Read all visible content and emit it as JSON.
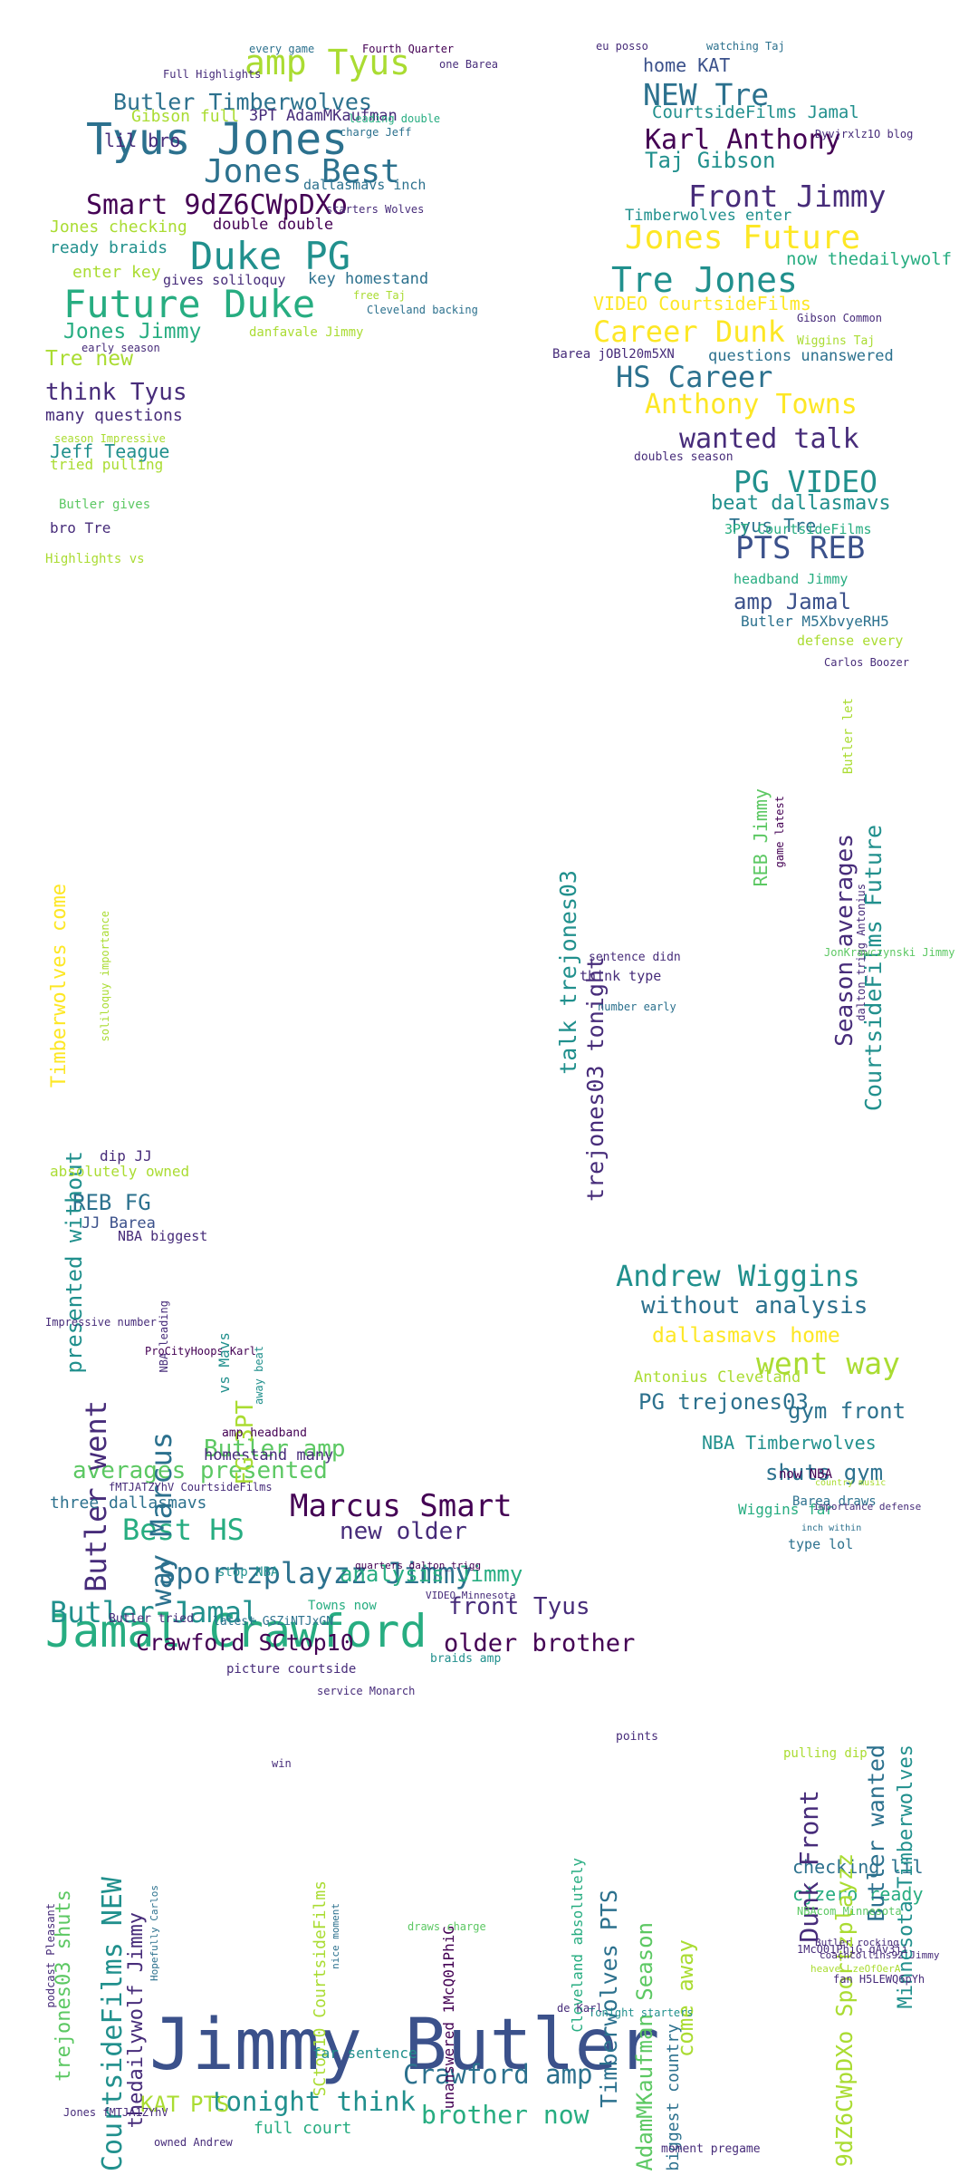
{
  "colors": {
    "background": "#ffffff",
    "palette": [
      "#440154",
      "#472c7a",
      "#3b518b",
      "#2c718e",
      "#21908d",
      "#27ad81",
      "#5cc863",
      "#aadc32",
      "#fde725"
    ]
  },
  "words": [
    {
      "t": "Jimmy Butler",
      "c": "#3b518b"
    },
    {
      "t": "Jamal Crawford",
      "c": "#27ad81"
    },
    {
      "t": "Tyus Jones",
      "c": "#2c718e"
    },
    {
      "t": "Duke PG",
      "c": "#21908d"
    },
    {
      "t": "Future Duke",
      "c": "#27ad81"
    },
    {
      "t": "amp Tyus",
      "c": "#aadc32"
    },
    {
      "t": "Jones Best",
      "c": "#2c718e"
    },
    {
      "t": "Smart 9dZ6CWpDXo",
      "c": "#440154"
    },
    {
      "t": "Butler Timberwolves",
      "c": "#2c718e"
    },
    {
      "t": "NEW Tre",
      "c": "#2c718e"
    },
    {
      "t": "Karl Anthony",
      "c": "#440154"
    },
    {
      "t": "Front Jimmy",
      "c": "#472c7a"
    },
    {
      "t": "Taj Gibson",
      "c": "#21908d"
    },
    {
      "t": "Jones Future",
      "c": "#fde725"
    },
    {
      "t": "Tre Jones",
      "c": "#21908d"
    },
    {
      "t": "Career Dunk",
      "c": "#fde725"
    },
    {
      "t": "HS Career",
      "c": "#2c718e"
    },
    {
      "t": "Anthony Towns",
      "c": "#fde725"
    },
    {
      "t": "wanted talk",
      "c": "#472c7a"
    },
    {
      "t": "PG VIDEO",
      "c": "#21908d"
    },
    {
      "t": "PTS REB",
      "c": "#3b518b"
    },
    {
      "t": "Andrew Wiggins",
      "c": "#21908d"
    },
    {
      "t": "went way",
      "c": "#aadc32"
    },
    {
      "t": "Marcus Smart",
      "c": "#440154"
    },
    {
      "t": "Sportzplayzz Jimmy",
      "c": "#2c718e"
    },
    {
      "t": "Butler Jamal",
      "c": "#21908d"
    },
    {
      "t": "Crawford SCtop10",
      "c": "#440154"
    },
    {
      "t": "older brother",
      "c": "#440154"
    },
    {
      "t": "Crawford amp",
      "c": "#2c718e"
    },
    {
      "t": "tonight think",
      "c": "#21908d"
    },
    {
      "t": "brother now",
      "c": "#27ad81"
    },
    {
      "t": "Best HS",
      "c": "#27ad81"
    },
    {
      "t": "averages presented",
      "c": "#5cc863"
    },
    {
      "t": "Butler amp",
      "c": "#5cc863"
    },
    {
      "t": "new older",
      "c": "#472c7a"
    },
    {
      "t": "front Tyus",
      "c": "#472c7a"
    },
    {
      "t": "analysis Jimmy",
      "c": "#27ad81"
    },
    {
      "t": "Jones Jimmy",
      "c": "#27ad81"
    },
    {
      "t": "think Tyus",
      "c": "#472c7a"
    },
    {
      "t": "Tre new",
      "c": "#aadc32"
    },
    {
      "t": "Jeff Teague",
      "c": "#21908d"
    },
    {
      "t": "many questions",
      "c": "#472c7a"
    },
    {
      "t": "Gibson full",
      "c": "#aadc32"
    },
    {
      "t": "3PT AdamMKaufman",
      "c": "#472c7a"
    },
    {
      "t": "lil bro",
      "c": "#472c7a"
    },
    {
      "t": "Jones checking",
      "c": "#aadc32"
    },
    {
      "t": "ready braids",
      "c": "#21908d"
    },
    {
      "t": "double double",
      "c": "#440154"
    },
    {
      "t": "enter key",
      "c": "#aadc32"
    },
    {
      "t": "key homestand",
      "c": "#2c718e"
    },
    {
      "t": "dallasmavs inch",
      "c": "#2c718e"
    },
    {
      "t": "gives soliloquy",
      "c": "#472c7a"
    },
    {
      "t": "danfavale Jimmy",
      "c": "#aadc32"
    },
    {
      "t": "home KAT",
      "c": "#3b518b"
    },
    {
      "t": "CourtsideFilms Jamal",
      "c": "#21908d"
    },
    {
      "t": "Timberwolves enter",
      "c": "#21908d"
    },
    {
      "t": "now thedailywolf",
      "c": "#27ad81"
    },
    {
      "t": "VIDEO CourtsideFilms",
      "c": "#fde725"
    },
    {
      "t": "questions unanswered",
      "c": "#2c718e"
    },
    {
      "t": "beat dallasmavs",
      "c": "#21908d"
    },
    {
      "t": "Tyus Tre",
      "c": "#2c718e"
    },
    {
      "t": "amp Jamal",
      "c": "#3b518b"
    },
    {
      "t": "3PT CourtsideFilms",
      "c": "#27ad81"
    },
    {
      "t": "headband Jimmy",
      "c": "#27ad81"
    },
    {
      "t": "Butler M5XbvyeRH5",
      "c": "#2c718e"
    },
    {
      "t": "without analysis",
      "c": "#2c718e"
    },
    {
      "t": "dallasmavs home",
      "c": "#fde725"
    },
    {
      "t": "PG trejones03",
      "c": "#2c718e"
    },
    {
      "t": "Antonius Cleveland",
      "c": "#aadc32"
    },
    {
      "t": "gym front",
      "c": "#2c718e"
    },
    {
      "t": "shuts gym",
      "c": "#2c718e"
    },
    {
      "t": "NBA Timberwolves",
      "c": "#21908d"
    },
    {
      "t": "Wiggins far",
      "c": "#27ad81"
    },
    {
      "t": "type lol",
      "c": "#2c718e"
    },
    {
      "t": "checking lil",
      "c": "#2c718e"
    },
    {
      "t": "cjzero ready",
      "c": "#27ad81"
    },
    {
      "t": "REB FG",
      "c": "#2c718e"
    },
    {
      "t": "JJ Barea",
      "c": "#3b518b"
    },
    {
      "t": "homestand many",
      "c": "#472c7a"
    },
    {
      "t": "Timberwolves come",
      "c": "#fde725"
    },
    {
      "t": "presented without",
      "c": "#21908d"
    },
    {
      "t": "Butler went",
      "c": "#472c7a"
    },
    {
      "t": "way Marcus",
      "c": "#2c718e"
    },
    {
      "t": "FG 3PT",
      "c": "#aadc32"
    },
    {
      "t": "talk trejones03",
      "c": "#21908d"
    },
    {
      "t": "trejones03 tonight",
      "c": "#472c7a"
    },
    {
      "t": "Season averages",
      "c": "#472c7a"
    },
    {
      "t": "CourtsideFilms Future",
      "c": "#21908d"
    },
    {
      "t": "REB Jimmy",
      "c": "#5cc863"
    },
    {
      "t": "CourtsideFilms NEW",
      "c": "#21908d"
    },
    {
      "t": "trejones03 shuts",
      "c": "#5cc863"
    },
    {
      "t": "thedailywolf Jimmy",
      "c": "#472c7a"
    },
    {
      "t": "Timberwolves PTS",
      "c": "#2c718e"
    },
    {
      "t": "AdamMKaufman Season",
      "c": "#5cc863"
    },
    {
      "t": "come away",
      "c": "#aadc32"
    },
    {
      "t": "Dunk Front",
      "c": "#472c7a"
    },
    {
      "t": "9dZ6CWpDXo Sportzplayzz",
      "c": "#aadc32"
    },
    {
      "t": "Butler wanted",
      "c": "#2c718e"
    },
    {
      "t": "Minnesota Timberwolves",
      "c": "#21908d"
    },
    {
      "t": "SCtop10 CourtsideFilms",
      "c": "#aadc32"
    },
    {
      "t": "unanswered 1McQ01PhiG",
      "c": "#440154"
    },
    {
      "t": "Cleveland absolutely",
      "c": "#27ad81"
    },
    {
      "t": "KAT",
      "c": "#aadc32"
    },
    {
      "t": "PTS",
      "c": "#aadc32"
    },
    {
      "t": "full court",
      "c": "#27ad81"
    },
    {
      "t": "far sentence",
      "c": "#21908d"
    },
    {
      "t": "dip JJ",
      "c": "#472c7a"
    },
    {
      "t": "absolutely owned",
      "c": "#aadc32"
    },
    {
      "t": "tried pulling",
      "c": "#aadc32"
    },
    {
      "t": "Butler gives",
      "c": "#5cc863"
    },
    {
      "t": "bro Tre",
      "c": "#472c7a"
    },
    {
      "t": "Highlights vs",
      "c": "#aadc32"
    },
    {
      "t": "season Impressive",
      "c": "#aadc32"
    },
    {
      "t": "Barea jOBl20m5XN",
      "c": "#472c7a"
    },
    {
      "t": "doubles season",
      "c": "#472c7a"
    },
    {
      "t": "defense every",
      "c": "#aadc32"
    },
    {
      "t": "Carlos Boozer",
      "c": "#472c7a"
    },
    {
      "t": "number early",
      "c": "#2c718e"
    },
    {
      "t": "think type",
      "c": "#472c7a"
    },
    {
      "t": "sentence didn",
      "c": "#472c7a"
    },
    {
      "t": "Barea draws",
      "c": "#2c718e"
    },
    {
      "t": "now NBA",
      "c": "#440154"
    },
    {
      "t": "pulling dip",
      "c": "#aadc32"
    },
    {
      "t": "stop NBA",
      "c": "#21908d"
    },
    {
      "t": "Towns now",
      "c": "#27ad81"
    },
    {
      "t": "braids amp",
      "c": "#21908d"
    },
    {
      "t": "Butler tried",
      "c": "#472c7a"
    },
    {
      "t": "latest GSZiNTJxGN",
      "c": "#2c718e"
    },
    {
      "t": "three dallasmavs",
      "c": "#2c718e"
    },
    {
      "t": "fMTJATZYhV CourtsideFilms",
      "c": "#472c7a"
    },
    {
      "t": "amp headband",
      "c": "#440154"
    },
    {
      "t": "biggest country",
      "c": "#2c718e"
    },
    {
      "t": "owned Andrew",
      "c": "#472c7a"
    },
    {
      "t": "Jones fMTJA1ZYhV",
      "c": "#472c7a"
    },
    {
      "t": "moment pregame",
      "c": "#472c7a"
    },
    {
      "t": "Tonight starters",
      "c": "#21908d"
    },
    {
      "t": "NBAcom Minnesota",
      "c": "#5cc863"
    },
    {
      "t": "Butler rocking",
      "c": "#472c7a"
    },
    {
      "t": "coachcollins92 Jimmy",
      "c": "#472c7a"
    },
    {
      "t": "fan H5LEWQ6pYh",
      "c": "#472c7a"
    },
    {
      "t": "heave LzeOfOerA",
      "c": "#aadc32"
    },
    {
      "t": "eu posso",
      "c": "#472c7a"
    },
    {
      "t": "watching Taj",
      "c": "#2c718e"
    },
    {
      "t": "Dyvjrxlz1O blog",
      "c": "#472c7a"
    },
    {
      "t": "Gibson Common",
      "c": "#472c7a"
    },
    {
      "t": "Wiggins Taj",
      "c": "#aadc32"
    },
    {
      "t": "charge Jeff",
      "c": "#2c718e"
    },
    {
      "t": "leading double",
      "c": "#27ad81"
    },
    {
      "t": "Full Highlights",
      "c": "#472c7a"
    },
    {
      "t": "every game",
      "c": "#2c718e"
    },
    {
      "t": "Fourth Quarter",
      "c": "#440154"
    },
    {
      "t": "one Barea",
      "c": "#472c7a"
    },
    {
      "t": "starters Wolves",
      "c": "#472c7a"
    },
    {
      "t": "free Taj",
      "c": "#aadc32"
    },
    {
      "t": "Cleveland backing",
      "c": "#2c718e"
    },
    {
      "t": "early season",
      "c": "#472c7a"
    },
    {
      "t": "NBA biggest",
      "c": "#472c7a"
    },
    {
      "t": "Impressive number",
      "c": "#472c7a"
    },
    {
      "t": "ProCityHoops Karl",
      "c": "#440154"
    },
    {
      "t": "NBA leading",
      "c": "#472c7a"
    },
    {
      "t": "vs Mavs",
      "c": "#21908d"
    },
    {
      "t": "soliloquy importance",
      "c": "#aadc32"
    },
    {
      "t": "away beat",
      "c": "#21908d"
    },
    {
      "t": "game latest",
      "c": "#440154"
    },
    {
      "t": "Butler let",
      "c": "#aadc32"
    },
    {
      "t": "dalton_trigg Antonius",
      "c": "#472c7a"
    },
    {
      "t": "JonKrawczynski Jimmy",
      "c": "#5cc863"
    },
    {
      "t": "importance defense",
      "c": "#472c7a"
    },
    {
      "t": "country music",
      "c": "#aadc32"
    },
    {
      "t": "inch within",
      "c": "#2c718e"
    },
    {
      "t": "Hopefully Carlos",
      "c": "#2c718e"
    },
    {
      "t": "nice moment",
      "c": "#2c718e"
    },
    {
      "t": "VIDEO Minnesota",
      "c": "#472c7a"
    },
    {
      "t": "quarters dalton_trigg",
      "c": "#440154"
    },
    {
      "t": "picture courtside",
      "c": "#472c7a"
    },
    {
      "t": "service Monarch",
      "c": "#472c7a"
    },
    {
      "t": "win",
      "c": "#472c7a"
    },
    {
      "t": "points",
      "c": "#472c7a"
    },
    {
      "t": "de Karl",
      "c": "#472c7a"
    },
    {
      "t": "draws charge",
      "c": "#5cc863"
    },
    {
      "t": "1McQ01PhiG qAv3ji",
      "c": "#472c7a"
    },
    {
      "t": "podcast Pleasant",
      "c": "#472c7a"
    },
    {
      "t": "BleacherReport Jimmy",
      "c": "#aadc32"
    },
    {
      "t": "SCtop10 thedailywolf",
      "c": "#aadc32"
    }
  ]
}
